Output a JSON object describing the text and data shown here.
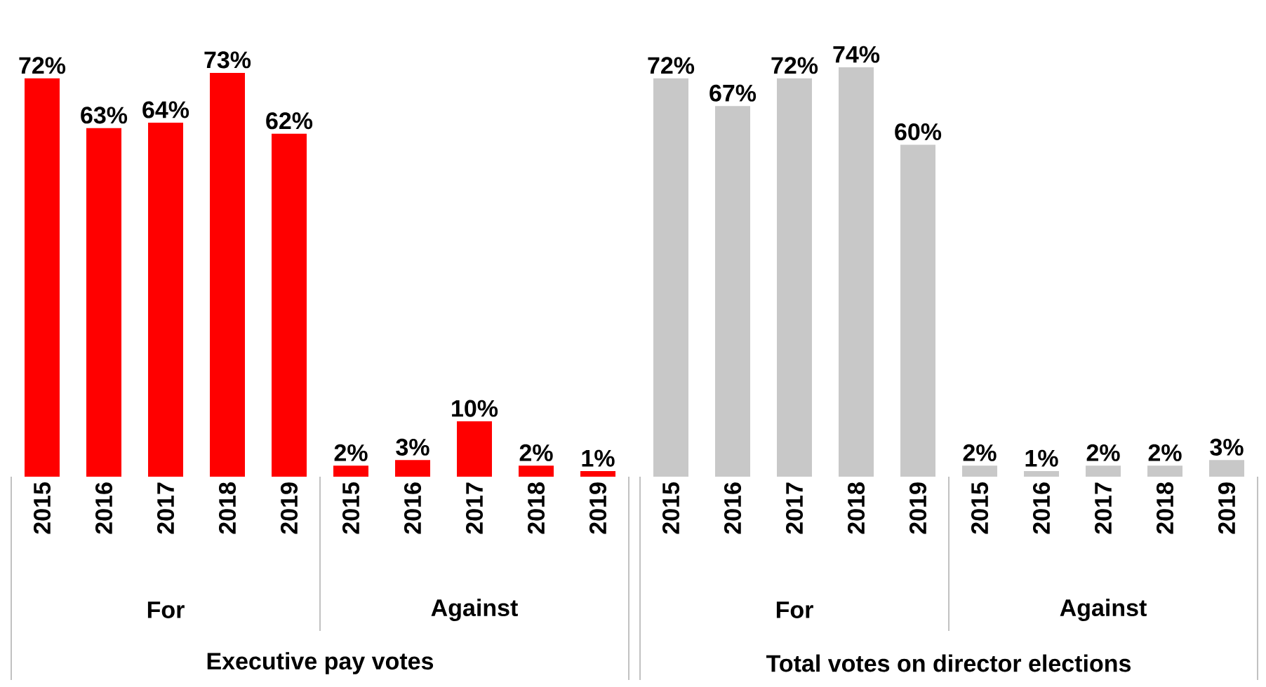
{
  "chart_data": [
    {
      "type": "bar",
      "xlabel": "Executive pay votes",
      "categories": [
        "2015",
        "2016",
        "2017",
        "2018",
        "2019",
        "2015",
        "2016",
        "2017",
        "2018",
        "2019"
      ],
      "values": [
        72,
        63,
        64,
        73,
        62,
        2,
        3,
        10,
        2,
        1
      ],
      "color": "#ff0000",
      "value_labels": [
        "72%",
        "63%",
        "64%",
        "73%",
        "62%",
        "2%",
        "3%",
        "10%",
        "2%",
        "1%"
      ],
      "annotations": [
        "For",
        "Against"
      ]
    },
    {
      "type": "bar",
      "xlabel": "Total votes on director elections",
      "categories": [
        "2015",
        "2016",
        "2017",
        "2018",
        "2019",
        "2015",
        "2016",
        "2017",
        "2018",
        "2019"
      ],
      "values": [
        72,
        67,
        72,
        74,
        60,
        2,
        1,
        2,
        2,
        3
      ],
      "color": "#c8c8c8",
      "value_labels": [
        "72%",
        "67%",
        "72%",
        "74%",
        "60%",
        "2%",
        "1%",
        "2%",
        "2%",
        "3%"
      ],
      "annotations": [
        "For",
        "Against"
      ]
    }
  ]
}
